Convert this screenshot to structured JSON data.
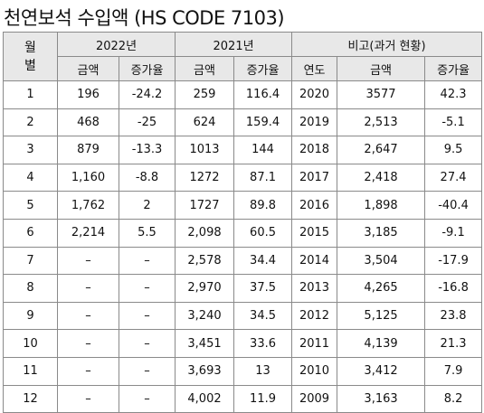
{
  "title": "천연보석 수입액 (HS CODE 7103)",
  "header": {
    "month_line1": "월",
    "month_line2": "별",
    "group_2022": "2022년",
    "group_2021": "2021년",
    "group_past": "비고(과거 현황)",
    "amount": "금액",
    "growth": "증가율",
    "year": "연도"
  },
  "rows": [
    {
      "month": "1",
      "a2022": "196",
      "g2022": "-24.2",
      "a2021": "259",
      "g2021": "116.4",
      "year": "2020",
      "past": "3577",
      "gpast": "42.3"
    },
    {
      "month": "2",
      "a2022": "468",
      "g2022": "-25",
      "a2021": "624",
      "g2021": "159.4",
      "year": "2019",
      "past": "2,513",
      "gpast": "-5.1"
    },
    {
      "month": "3",
      "a2022": "879",
      "g2022": "-13.3",
      "a2021": "1013",
      "g2021": "144",
      "year": "2018",
      "past": "2,647",
      "gpast": "9.5"
    },
    {
      "month": "4",
      "a2022": "1,160",
      "g2022": "-8.8",
      "a2021": "1272",
      "g2021": "87.1",
      "year": "2017",
      "past": "2,418",
      "gpast": "27.4"
    },
    {
      "month": "5",
      "a2022": "1,762",
      "g2022": "2",
      "a2021": "1727",
      "g2021": "89.8",
      "year": "2016",
      "past": "1,898",
      "gpast": "-40.4"
    },
    {
      "month": "6",
      "a2022": "2,214",
      "g2022": "5.5",
      "a2021": "2,098",
      "g2021": "60.5",
      "year": "2015",
      "past": "3,185",
      "gpast": "-9.1"
    },
    {
      "month": "7",
      "a2022": "–",
      "g2022": "–",
      "a2021": "2,578",
      "g2021": "34.4",
      "year": "2014",
      "past": "3,504",
      "gpast": "-17.9"
    },
    {
      "month": "8",
      "a2022": "–",
      "g2022": "–",
      "a2021": "2,970",
      "g2021": "37.5",
      "year": "2013",
      "past": "4,265",
      "gpast": "-16.8"
    },
    {
      "month": "9",
      "a2022": "–",
      "g2022": "–",
      "a2021": "3,240",
      "g2021": "34.5",
      "year": "2012",
      "past": "5,125",
      "gpast": "23.8"
    },
    {
      "month": "10",
      "a2022": "–",
      "g2022": "–",
      "a2021": "3,451",
      "g2021": "33.6",
      "year": "2011",
      "past": "4,139",
      "gpast": "21.3"
    },
    {
      "month": "11",
      "a2022": "–",
      "g2022": "–",
      "a2021": "3,693",
      "g2021": "13",
      "year": "2010",
      "past": "3,412",
      "gpast": "7.9"
    },
    {
      "month": "12",
      "a2022": "–",
      "g2022": "–",
      "a2021": "4,002",
      "g2021": "11.9",
      "year": "2009",
      "past": "3,163",
      "gpast": "8.2"
    }
  ]
}
